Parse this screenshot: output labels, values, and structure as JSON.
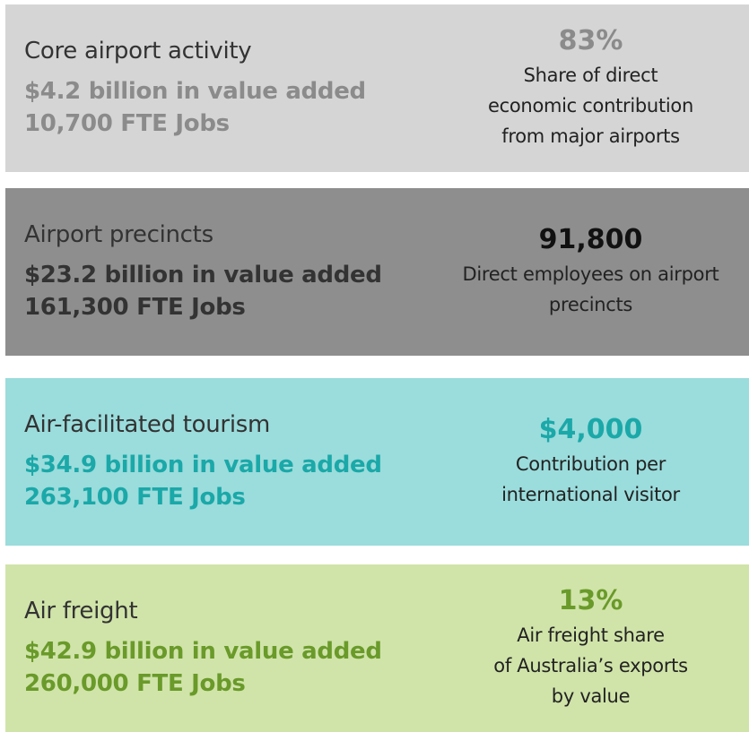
{
  "panels": [
    {
      "title": "Core airport activity",
      "value_added": "$4.2 billion in value added",
      "jobs": "10,700 FTE Jobs",
      "stat": "83%",
      "stat_desc": [
        "Share of direct",
        "economic contribution",
        "from major airports"
      ]
    },
    {
      "title": "Airport precincts",
      "value_added": "$23.2 billion in value added",
      "jobs": "161,300 FTE Jobs",
      "stat": "91,800",
      "stat_desc": [
        "Direct employees on airport",
        "precincts"
      ]
    },
    {
      "title": "Air-facilitated tourism",
      "value_added": "$34.9 billion in value added",
      "jobs": "263,100 FTE Jobs",
      "stat": "$4,000",
      "stat_desc": [
        "Contribution per",
        "international visitor"
      ]
    },
    {
      "title": "Air freight",
      "value_added": "$42.9 billion in value added",
      "jobs": "260,000 FTE Jobs",
      "stat": "13%",
      "stat_desc": [
        "Air freight share",
        "of Australia’s exports",
        "by value"
      ]
    }
  ]
}
